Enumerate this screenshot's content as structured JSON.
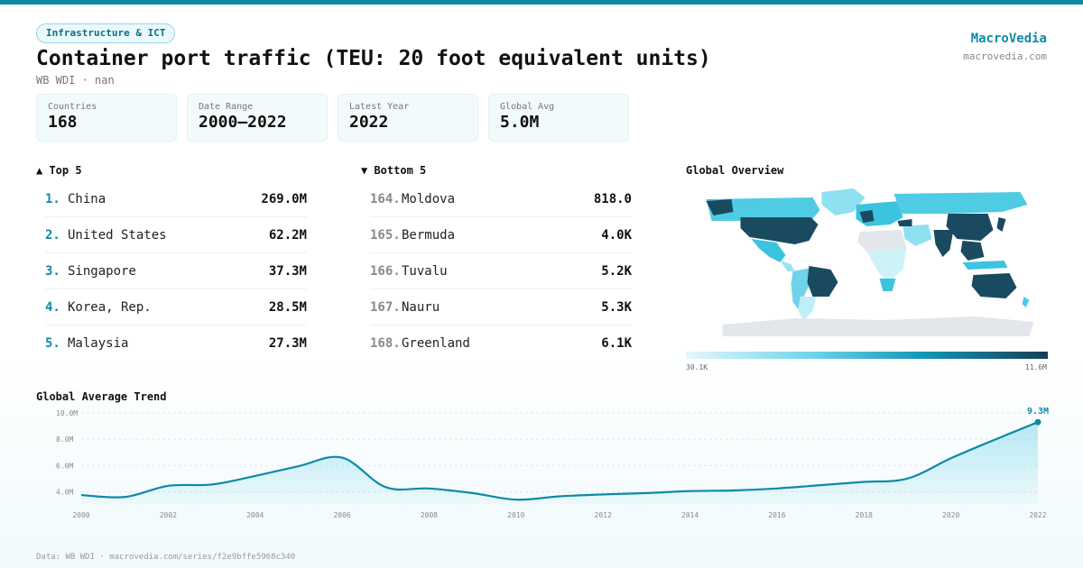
{
  "header": {
    "tag": "Infrastructure & ICT",
    "title": "Container port traffic (TEU: 20 foot equivalent units)",
    "subtitle": "WB WDI · nan",
    "brand": "MacroVedia",
    "brand_url": "macrovedia.com"
  },
  "stats": [
    {
      "label": "Countries",
      "value": "168"
    },
    {
      "label": "Date Range",
      "value": "2000–2022"
    },
    {
      "label": "Latest Year",
      "value": "2022"
    },
    {
      "label": "Global Avg",
      "value": "5.0M"
    }
  ],
  "top5": {
    "heading": "▲ Top 5",
    "items": [
      {
        "rank": "1.",
        "name": "China",
        "value": "269.0M"
      },
      {
        "rank": "2.",
        "name": "United States",
        "value": "62.2M"
      },
      {
        "rank": "3.",
        "name": "Singapore",
        "value": "37.3M"
      },
      {
        "rank": "4.",
        "name": "Korea, Rep.",
        "value": "28.5M"
      },
      {
        "rank": "5.",
        "name": "Malaysia",
        "value": "27.3M"
      }
    ]
  },
  "bottom5": {
    "heading": "▼ Bottom 5",
    "items": [
      {
        "rank": "164.",
        "name": "Moldova",
        "value": "818.0"
      },
      {
        "rank": "165.",
        "name": "Bermuda",
        "value": "4.0K"
      },
      {
        "rank": "166.",
        "name": "Tuvalu",
        "value": "5.2K"
      },
      {
        "rank": "167.",
        "name": "Nauru",
        "value": "5.3K"
      },
      {
        "rank": "168.",
        "name": "Greenland",
        "value": "6.1K"
      }
    ]
  },
  "map": {
    "heading": "Global Overview",
    "legend_min": "30.1K",
    "legend_max": "11.6M",
    "colors": {
      "low": "#e6f7fb",
      "mid": "#3cc3e0",
      "high": "#1a4a60",
      "nodata": "#e3e6ea"
    }
  },
  "chart_data": {
    "type": "area",
    "title": "Global Average Trend",
    "x": [
      2000,
      2001,
      2002,
      2003,
      2004,
      2005,
      2006,
      2007,
      2008,
      2009,
      2010,
      2011,
      2012,
      2013,
      2014,
      2015,
      2016,
      2017,
      2018,
      2019,
      2020,
      2021,
      2022
    ],
    "values": [
      3.75,
      3.6,
      4.45,
      4.55,
      5.2,
      5.95,
      6.6,
      4.35,
      4.25,
      3.9,
      3.4,
      3.65,
      3.8,
      3.9,
      4.05,
      4.1,
      4.25,
      4.5,
      4.75,
      5.0,
      6.55,
      7.95,
      9.3
    ],
    "ylim": [
      3.0,
      10.0
    ],
    "yticks": [
      4.0,
      6.0,
      8.0,
      10.0
    ],
    "ytick_labels": [
      "4.0M",
      "6.0M",
      "8.0M",
      "10.0M"
    ],
    "xticks": [
      2000,
      2002,
      2004,
      2006,
      2008,
      2010,
      2012,
      2014,
      2016,
      2018,
      2020,
      2022
    ],
    "last_label": "9.3M",
    "grid": true,
    "color": "#0e8aa7"
  },
  "footer": "Data: WB WDI · macrovedia.com/series/f2e9bffe5968c340"
}
